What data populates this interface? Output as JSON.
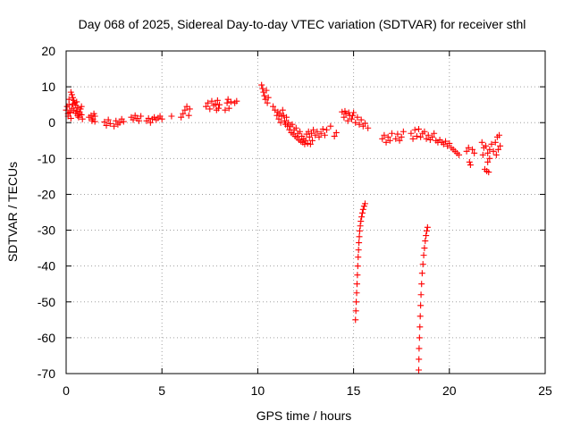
{
  "chart_data": {
    "type": "scatter",
    "title": "Day 068 of 2025, Sidereal Day-to-day VTEC variation (SDTVAR) for receiver sthl",
    "xlabel": "GPS time / hours",
    "ylabel": "SDTVAR / TECUs",
    "xlim": [
      0,
      25
    ],
    "ylim": [
      -70,
      20
    ],
    "xticks": [
      0,
      5,
      10,
      15,
      20,
      25
    ],
    "yticks": [
      20,
      10,
      0,
      -10,
      -20,
      -30,
      -40,
      -50,
      -60,
      -70
    ],
    "xtick_labels": [
      "0",
      "5",
      "10",
      "15",
      "20",
      "25"
    ],
    "ytick_labels": [
      "20",
      "10",
      "0",
      "-10",
      "-20",
      "-30",
      "-40",
      "-50",
      "-60",
      "-70"
    ],
    "grid": true,
    "marker": "+",
    "color": "#ff0000",
    "series": [
      {
        "name": "sthl",
        "points": [
          [
            0.0,
            3.5
          ],
          [
            0.05,
            4.5
          ],
          [
            0.1,
            2.5
          ],
          [
            0.15,
            5.0
          ],
          [
            0.2,
            3.0
          ],
          [
            0.25,
            8.5
          ],
          [
            0.3,
            7.8
          ],
          [
            0.35,
            7.0
          ],
          [
            0.4,
            6.2
          ],
          [
            0.45,
            5.5
          ],
          [
            0.5,
            4.8
          ],
          [
            0.55,
            3.2
          ],
          [
            0.6,
            2.0
          ],
          [
            0.65,
            1.5
          ],
          [
            0.7,
            2.5
          ],
          [
            0.75,
            3.8
          ],
          [
            0.8,
            2.2
          ],
          [
            0.85,
            1.0
          ],
          [
            0.1,
            1.8
          ],
          [
            0.2,
            2.8
          ],
          [
            0.3,
            4.0
          ],
          [
            0.4,
            3.5
          ],
          [
            0.5,
            2.6
          ],
          [
            0.6,
            4.2
          ],
          [
            0.7,
            3.0
          ],
          [
            0.8,
            4.5
          ],
          [
            0.15,
            6.5
          ],
          [
            0.35,
            5.2
          ],
          [
            0.55,
            5.8
          ],
          [
            0.25,
            1.2
          ],
          [
            1.2,
            1.5
          ],
          [
            1.3,
            2.0
          ],
          [
            1.35,
            0.5
          ],
          [
            1.4,
            1.0
          ],
          [
            1.45,
            2.5
          ],
          [
            1.5,
            1.8
          ],
          [
            1.5,
            0.3
          ],
          [
            2.0,
            0.2
          ],
          [
            2.1,
            -0.8
          ],
          [
            2.2,
            0.8
          ],
          [
            2.3,
            -0.3
          ],
          [
            2.5,
            -1.0
          ],
          [
            2.6,
            0.5
          ],
          [
            2.7,
            -0.5
          ],
          [
            2.8,
            0.0
          ],
          [
            2.9,
            1.0
          ],
          [
            3.0,
            0.3
          ],
          [
            3.4,
            1.5
          ],
          [
            3.5,
            0.8
          ],
          [
            3.6,
            2.0
          ],
          [
            3.7,
            1.2
          ],
          [
            3.8,
            0.5
          ],
          [
            3.9,
            1.8
          ],
          [
            4.2,
            0.5
          ],
          [
            4.3,
            1.2
          ],
          [
            4.4,
            0.0
          ],
          [
            4.5,
            1.0
          ],
          [
            4.6,
            1.5
          ],
          [
            4.7,
            0.8
          ],
          [
            4.8,
            1.3
          ],
          [
            4.9,
            1.8
          ],
          [
            5.0,
            1.0
          ],
          [
            5.5,
            1.8
          ],
          [
            6.0,
            1.5
          ],
          [
            6.1,
            2.5
          ],
          [
            6.2,
            3.5
          ],
          [
            6.3,
            4.5
          ],
          [
            6.4,
            2.0
          ],
          [
            6.45,
            3.8
          ],
          [
            7.3,
            4.5
          ],
          [
            7.4,
            5.5
          ],
          [
            7.5,
            3.8
          ],
          [
            7.6,
            6.0
          ],
          [
            7.7,
            4.8
          ],
          [
            7.8,
            5.2
          ],
          [
            7.85,
            3.5
          ],
          [
            7.9,
            6.2
          ],
          [
            7.95,
            4.0
          ],
          [
            8.0,
            5.0
          ],
          [
            8.3,
            3.5
          ],
          [
            8.4,
            5.5
          ],
          [
            8.45,
            6.5
          ],
          [
            8.5,
            4.0
          ],
          [
            8.6,
            5.8
          ],
          [
            8.8,
            5.5
          ],
          [
            8.9,
            6.0
          ],
          [
            10.2,
            10.5
          ],
          [
            10.25,
            9.5
          ],
          [
            10.3,
            8.5
          ],
          [
            10.35,
            7.5
          ],
          [
            10.4,
            6.5
          ],
          [
            10.45,
            9.0
          ],
          [
            10.5,
            5.5
          ],
          [
            10.55,
            7.0
          ],
          [
            10.8,
            4.5
          ],
          [
            10.9,
            3.5
          ],
          [
            11.0,
            2.0
          ],
          [
            11.05,
            3.0
          ],
          [
            11.1,
            1.0
          ],
          [
            11.15,
            2.5
          ],
          [
            11.2,
            0.0
          ],
          [
            11.25,
            1.8
          ],
          [
            11.3,
            3.5
          ],
          [
            11.35,
            2.0
          ],
          [
            11.4,
            0.5
          ],
          [
            11.45,
            -0.5
          ],
          [
            11.5,
            1.5
          ],
          [
            11.55,
            -1.0
          ],
          [
            11.6,
            0.0
          ],
          [
            11.65,
            -2.0
          ],
          [
            11.7,
            -1.0
          ],
          [
            11.75,
            -2.8
          ],
          [
            11.8,
            -0.5
          ],
          [
            11.85,
            -3.2
          ],
          [
            11.9,
            -2.0
          ],
          [
            11.95,
            -3.8
          ],
          [
            12.0,
            -1.5
          ],
          [
            12.05,
            -4.2
          ],
          [
            12.1,
            -3.0
          ],
          [
            12.15,
            -4.8
          ],
          [
            12.2,
            -2.5
          ],
          [
            12.25,
            -5.2
          ],
          [
            12.3,
            -3.8
          ],
          [
            12.35,
            -5.5
          ],
          [
            12.4,
            -4.5
          ],
          [
            12.45,
            -6.0
          ],
          [
            12.5,
            -5.0
          ],
          [
            12.55,
            -3.2
          ],
          [
            12.6,
            -5.8
          ],
          [
            12.65,
            -2.5
          ],
          [
            12.7,
            -4.0
          ],
          [
            12.75,
            -6.0
          ],
          [
            12.8,
            -3.0
          ],
          [
            12.85,
            -5.0
          ],
          [
            12.9,
            -2.0
          ],
          [
            13.0,
            -3.5
          ],
          [
            13.1,
            -2.5
          ],
          [
            13.2,
            -4.0
          ],
          [
            13.3,
            -3.0
          ],
          [
            13.4,
            -1.8
          ],
          [
            13.5,
            -3.5
          ],
          [
            13.6,
            -2.0
          ],
          [
            13.8,
            -1.0
          ],
          [
            14.0,
            -3.8
          ],
          [
            14.1,
            -2.8
          ],
          [
            14.4,
            3.0
          ],
          [
            14.5,
            1.5
          ],
          [
            14.6,
            2.5
          ],
          [
            14.7,
            0.5
          ],
          [
            14.8,
            2.0
          ],
          [
            14.9,
            1.0
          ],
          [
            15.0,
            2.8
          ],
          [
            15.1,
            0.0
          ],
          [
            15.2,
            1.5
          ],
          [
            15.3,
            -0.5
          ],
          [
            15.4,
            0.8
          ],
          [
            15.5,
            -1.0
          ],
          [
            15.6,
            -0.2
          ],
          [
            15.75,
            -1.5
          ],
          [
            14.55,
            3.2
          ],
          [
            14.75,
            2.8
          ],
          [
            14.95,
            2.0
          ],
          [
            15.1,
            -55.0
          ],
          [
            15.12,
            -52.5
          ],
          [
            15.14,
            -50.0
          ],
          [
            15.16,
            -47.5
          ],
          [
            15.18,
            -45.0
          ],
          [
            15.2,
            -42.5
          ],
          [
            15.22,
            -40.0
          ],
          [
            15.24,
            -37.5
          ],
          [
            15.26,
            -35.5
          ],
          [
            15.28,
            -33.5
          ],
          [
            15.3,
            -31.8
          ],
          [
            15.32,
            -30.2
          ],
          [
            15.35,
            -28.8
          ],
          [
            15.38,
            -27.5
          ],
          [
            15.42,
            -26.3
          ],
          [
            15.46,
            -25.2
          ],
          [
            15.5,
            -24.2
          ],
          [
            15.55,
            -23.3
          ],
          [
            15.6,
            -22.6
          ],
          [
            16.5,
            -4.5
          ],
          [
            16.6,
            -3.5
          ],
          [
            16.7,
            -5.5
          ],
          [
            16.8,
            -4.0
          ],
          [
            16.9,
            -5.0
          ],
          [
            17.0,
            -3.0
          ],
          [
            17.2,
            -4.5
          ],
          [
            17.3,
            -3.2
          ],
          [
            17.4,
            -5.0
          ],
          [
            17.5,
            -4.0
          ],
          [
            17.6,
            -2.5
          ],
          [
            18.0,
            -3.0
          ],
          [
            18.1,
            -4.5
          ],
          [
            18.2,
            -2.0
          ],
          [
            18.3,
            -3.8
          ],
          [
            18.4,
            -1.8
          ],
          [
            18.5,
            -4.0
          ],
          [
            18.6,
            -3.0
          ],
          [
            18.7,
            -2.5
          ],
          [
            18.8,
            -4.5
          ],
          [
            18.9,
            -3.5
          ],
          [
            19.0,
            -4.8
          ],
          [
            19.1,
            -4.0
          ],
          [
            19.2,
            -3.0
          ],
          [
            19.3,
            -5.0
          ],
          [
            19.4,
            -5.5
          ],
          [
            19.5,
            -4.8
          ],
          [
            19.6,
            -5.5
          ],
          [
            19.7,
            -6.0
          ],
          [
            19.8,
            -5.2
          ],
          [
            19.9,
            -6.5
          ],
          [
            20.0,
            -5.8
          ],
          [
            20.1,
            -7.0
          ],
          [
            20.2,
            -7.5
          ],
          [
            20.3,
            -8.0
          ],
          [
            20.4,
            -8.5
          ],
          [
            20.5,
            -9.0
          ],
          [
            18.4,
            -69.0
          ],
          [
            18.41,
            -66.0
          ],
          [
            18.42,
            -63.0
          ],
          [
            18.44,
            -60.0
          ],
          [
            18.46,
            -57.0
          ],
          [
            18.48,
            -54.0
          ],
          [
            18.5,
            -51.0
          ],
          [
            18.52,
            -48.0
          ],
          [
            18.55,
            -45.0
          ],
          [
            18.58,
            -42.0
          ],
          [
            18.62,
            -39.5
          ],
          [
            18.66,
            -37.0
          ],
          [
            18.7,
            -35.0
          ],
          [
            18.74,
            -33.0
          ],
          [
            18.78,
            -31.5
          ],
          [
            18.82,
            -30.2
          ],
          [
            18.86,
            -29.2
          ],
          [
            20.9,
            -8.0
          ],
          [
            21.0,
            -7.0
          ],
          [
            21.05,
            -11.0
          ],
          [
            21.1,
            -11.8
          ],
          [
            21.2,
            -7.5
          ],
          [
            21.3,
            -8.5
          ],
          [
            21.7,
            -5.5
          ],
          [
            21.75,
            -9.0
          ],
          [
            21.8,
            -7.0
          ],
          [
            21.85,
            -13.0
          ],
          [
            21.9,
            -6.5
          ],
          [
            21.95,
            -13.5
          ],
          [
            22.0,
            -8.5
          ],
          [
            22.05,
            -13.8
          ],
          [
            22.1,
            -7.5
          ],
          [
            22.0,
            -11.0
          ],
          [
            22.1,
            -10.0
          ],
          [
            22.2,
            -6.0
          ],
          [
            22.3,
            -8.0
          ],
          [
            22.4,
            -5.5
          ],
          [
            22.45,
            -9.0
          ],
          [
            22.5,
            -4.0
          ],
          [
            22.55,
            -7.5
          ],
          [
            22.6,
            -3.5
          ],
          [
            22.65,
            -6.5
          ]
        ]
      }
    ]
  }
}
